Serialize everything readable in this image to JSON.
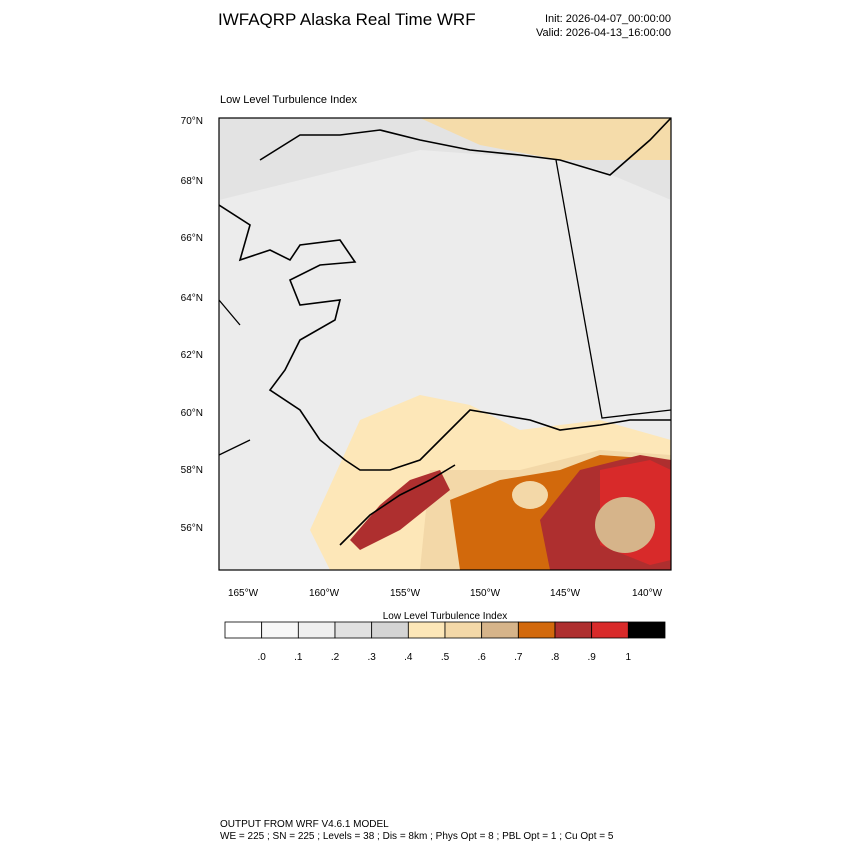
{
  "header": {
    "title": "IWFAQRP Alaska Real Time WRF",
    "init": "Init: 2026-04-07_00:00:00",
    "valid": "Valid: 2026-04-13_16:00:00"
  },
  "map": {
    "subtitle": "Low Level Turbulence Index",
    "lat_labels": [
      "70°N",
      "68°N",
      "66°N",
      "64°N",
      "62°N",
      "60°N",
      "58°N",
      "56°N"
    ],
    "lon_labels": [
      "165°W",
      "160°W",
      "155°W",
      "150°W",
      "145°W",
      "140°W"
    ]
  },
  "colorbar": {
    "title": "Low Level Turbulence Index",
    "colors": [
      "#ffffff",
      "#f7f7f7",
      "#efefef",
      "#e1e1e1",
      "#d4d4d4",
      "#fde7b8",
      "#f3d8a8",
      "#d6b48a",
      "#d2690c",
      "#ae2f2f",
      "#d82a2a",
      "#000000"
    ],
    "labels": [
      ".0",
      ".1",
      ".2",
      ".3",
      ".4",
      ".5",
      ".6",
      ".7",
      ".8",
      ".9",
      "1"
    ]
  },
  "footer": {
    "line1": "OUTPUT FROM WRF V4.6.1 MODEL",
    "line2": "WE = 225 ; SN = 225 ; Levels = 38 ; Dis = 8km ; Phys Opt = 8 ; PBL Opt = 1 ; Cu Opt = 5"
  }
}
